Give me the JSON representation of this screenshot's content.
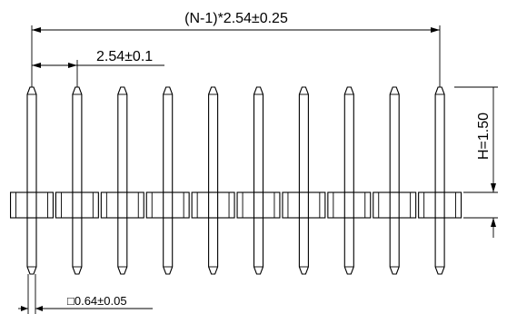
{
  "drawing": {
    "pin_count": 10,
    "dimensions": {
      "overall_pitch": "(N-1)*2.54±0.25",
      "pitch": "2.54±0.1",
      "height": "H=1.50",
      "pin_section": "□0.64±0.05"
    }
  }
}
